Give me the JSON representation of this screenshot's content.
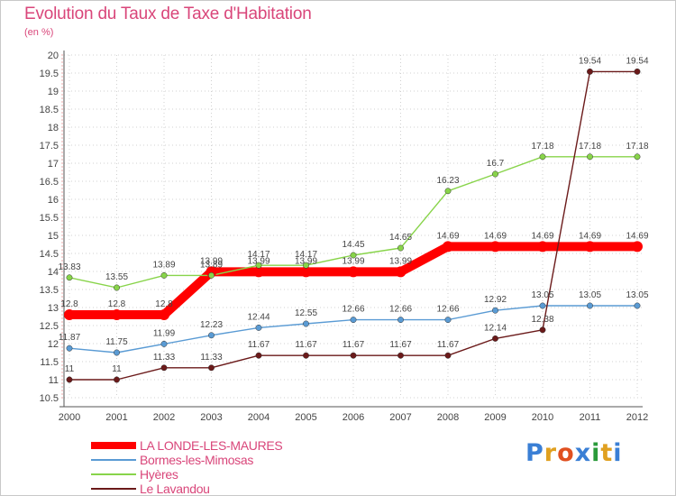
{
  "header": {
    "title": "Evolution du Taux de Taxe d'Habitation",
    "subtitle": "(en %)"
  },
  "logo": {
    "text": "Proxiti",
    "colors": [
      "#3a7fd5",
      "#e0a020",
      "#e05020",
      "#3a7fd5",
      "#2a9a3a",
      "#e0a020",
      "#3a7fd5"
    ]
  },
  "chart_data": {
    "type": "line",
    "title": "Evolution du Taux de Taxe d'Habitation",
    "ylabel": "(en %)",
    "xlabel": "",
    "ylim": [
      10.5,
      20
    ],
    "yticks": [
      "10.5",
      "11",
      "11.5",
      "12",
      "12.5",
      "13",
      "13.5",
      "14",
      "14.5",
      "15",
      "15.5",
      "16",
      "16.5",
      "17",
      "17.5",
      "18",
      "18.5",
      "19",
      "19.5",
      "20"
    ],
    "categories": [
      "2000",
      "2001",
      "2002",
      "2003",
      "2004",
      "2005",
      "2006",
      "2007",
      "2008",
      "2009",
      "2010",
      "2011",
      "2012"
    ],
    "series": [
      {
        "name": "LA LONDE-LES-MAURES",
        "color": "#ff0000",
        "values": [
          12.8,
          12.8,
          12.8,
          13.99,
          13.99,
          13.99,
          13.99,
          13.99,
          14.69,
          14.69,
          14.69,
          14.69,
          14.69
        ],
        "labels": [
          "12.8",
          "12.8",
          "12.8",
          "13.99",
          "13.99",
          "13.99",
          "13.99",
          "13.99",
          "14.69",
          "14.69",
          "14.69",
          "14.69",
          "14.69"
        ]
      },
      {
        "name": "Bormes-les-Mimosas",
        "color": "#5a9bd4",
        "values": [
          11.87,
          11.75,
          11.99,
          12.23,
          12.44,
          12.55,
          12.66,
          12.66,
          12.66,
          12.92,
          13.05,
          13.05,
          13.05
        ],
        "labels": [
          "11.87",
          "11.75",
          "11.99",
          "12.23",
          "12.44",
          "12.55",
          "12.66",
          "12.66",
          "12.66",
          "12.92",
          "13.05",
          "13.05",
          "13.05"
        ]
      },
      {
        "name": "Hyères",
        "color": "#88d44a",
        "values": [
          13.83,
          13.55,
          13.89,
          13.89,
          14.17,
          14.17,
          14.45,
          14.65,
          16.23,
          16.7,
          17.18,
          17.18,
          17.18
        ],
        "labels": [
          "13.83",
          "13.55",
          "13.89",
          "13.89",
          "14.17",
          "14.17",
          "14.45",
          "14.65",
          "16.23",
          "16.7",
          "17.18",
          "17.18",
          "17.18"
        ]
      },
      {
        "name": "Le Lavandou",
        "color": "#6b1a1a",
        "values": [
          11,
          11,
          11.33,
          11.33,
          11.67,
          11.67,
          11.67,
          11.67,
          11.67,
          12.14,
          12.38,
          19.54,
          19.54
        ],
        "labels": [
          "11",
          "11",
          "11.33",
          "11.33",
          "11.67",
          "11.67",
          "11.67",
          "11.67",
          "11.67",
          "12.14",
          "12.38",
          "19.54",
          "19.54"
        ]
      }
    ]
  }
}
